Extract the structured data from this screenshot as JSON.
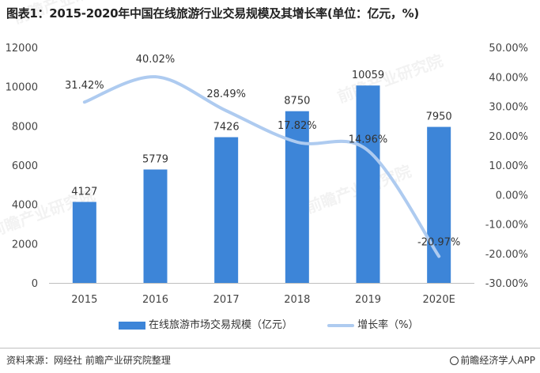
{
  "title": "图表1：2015-2020年中国在线旅游行业交易规模及其增长率(单位：亿元，%)",
  "source": "资料来源：网经社 前瞻产业研究院整理",
  "credit": "前瞻经济学人APP",
  "watermark_text": "前瞻产业研究院",
  "chart_data": {
    "type": "bar+line",
    "categories": [
      "2015",
      "2016",
      "2017",
      "2018",
      "2019",
      "2020E"
    ],
    "series": [
      {
        "name": "在线旅游市场交易规模（亿元）",
        "type": "bar",
        "axis": "left",
        "color": "#3d85d8",
        "values": [
          4127,
          5779,
          7426,
          8750,
          10059,
          7950
        ],
        "labels": [
          "4127",
          "5779",
          "7426",
          "8750",
          "10059",
          "7950"
        ]
      },
      {
        "name": "增长率（%）",
        "type": "line",
        "axis": "right",
        "smooth": true,
        "color": "#aecbf0",
        "values": [
          31.42,
          40.02,
          28.49,
          17.82,
          14.96,
          -20.97
        ],
        "labels": [
          "31.42%",
          "40.02%",
          "28.49%",
          "17.82%",
          "14.96%",
          "-20.97%"
        ]
      }
    ],
    "y_left": {
      "min": 0,
      "max": 12000,
      "ticks": [
        0,
        2000,
        4000,
        6000,
        8000,
        10000,
        12000
      ],
      "tick_labels": [
        "0",
        "2000",
        "4000",
        "6000",
        "8000",
        "10000",
        "12000"
      ]
    },
    "y_right": {
      "min": -30,
      "max": 50,
      "ticks": [
        -30,
        -20,
        -10,
        0,
        10,
        20,
        30,
        40,
        50
      ],
      "tick_labels": [
        "-30.00%",
        "-20.00%",
        "-10.00%",
        "0.00%",
        "10.00%",
        "20.00%",
        "30.00%",
        "40.00%",
        "50.00%"
      ]
    },
    "grid": false,
    "legend_position": "bottom"
  }
}
